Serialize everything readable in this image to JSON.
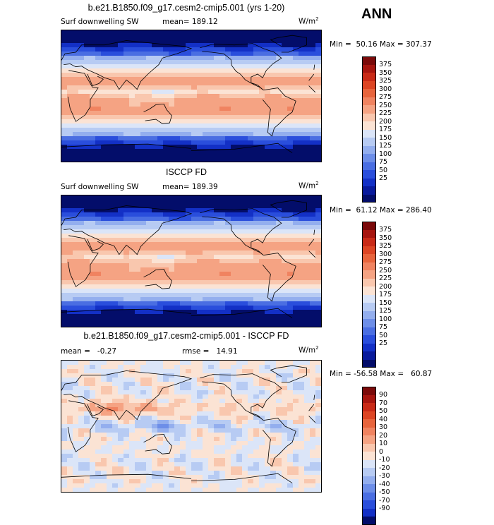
{
  "season_label": "ANN",
  "units_base": "W/m",
  "units_exp": "2",
  "panels": [
    {
      "title": "b.e21.B1850.f09_g17.cesm2-cmip5.001 (yrs 1-20)",
      "variable": "Surf downwelling SW",
      "stat_text": "mean= 189.12",
      "minmax_text": "Min =  50.16 Max = 307.37",
      "levels": [
        "375",
        "350",
        "325",
        "300",
        "275",
        "250",
        "225",
        "200",
        "175",
        "150",
        "125",
        "100",
        "75",
        "50",
        "25"
      ]
    },
    {
      "title": "ISCCP FD",
      "variable": "Surf downwelling SW",
      "stat_text": "mean= 189.39",
      "minmax_text": "Min =  61.12 Max = 286.40",
      "levels": [
        "375",
        "350",
        "325",
        "300",
        "275",
        "250",
        "225",
        "200",
        "175",
        "150",
        "125",
        "100",
        "75",
        "50",
        "25"
      ]
    },
    {
      "title": "b.e21.B1850.f09_g17.cesm2-cmip5.001 - ISCCP FD",
      "variable": "",
      "stat_text": "mean =   -0.27",
      "stat2_text": "rmse =   14.91",
      "minmax_text": "Min = -56.58 Max =   60.87",
      "levels": [
        "90",
        "70",
        "50",
        "40",
        "30",
        "20",
        "10",
        "0",
        "-10",
        "-20",
        "-30",
        "-40",
        "-50",
        "-70",
        "-90"
      ]
    }
  ],
  "colors": {
    "abs_scale": [
      "#7b0a0a",
      "#a7150f",
      "#c92a17",
      "#dd4524",
      "#e8643c",
      "#f08360",
      "#f5a383",
      "#f9c7ae",
      "#fbe3d4",
      "#dbe5f8",
      "#b7cbf3",
      "#93aeee",
      "#6d8ee8",
      "#4a6ee2",
      "#2a4edc",
      "#1330c6",
      "#091a9c",
      "#030d6a"
    ],
    "diff_scale": [
      "#7b0a0a",
      "#a7150f",
      "#c92a17",
      "#dd4524",
      "#e8643c",
      "#f08360",
      "#f5a383",
      "#f9c7ae",
      "#fbe3d4",
      "#dbe5f8",
      "#b7cbf3",
      "#93aeee",
      "#6d8ee8",
      "#4a6ee2",
      "#2a4edc",
      "#1330c6",
      "#030d6a"
    ]
  }
}
